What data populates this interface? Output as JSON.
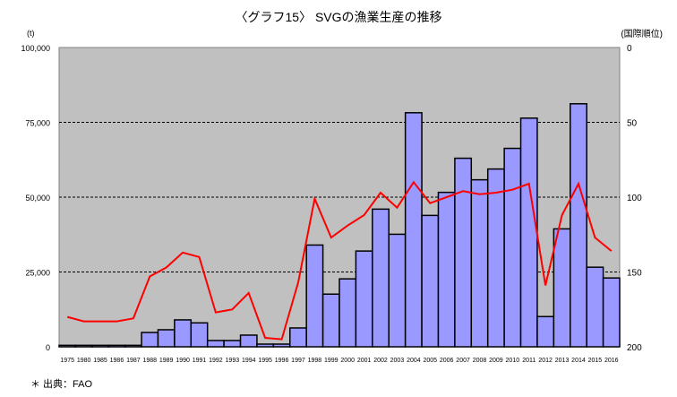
{
  "chart_data": {
    "type": "bar+line",
    "title": "〈グラフ15〉 SVGの漁業生産の推移",
    "ylabel_left": "(t)",
    "ylabel_right": "(国際順位)",
    "source_note": "＊ 出典：FAO",
    "categories": [
      "1975",
      "1980",
      "1985",
      "1986",
      "1987",
      "1988",
      "1989",
      "1990",
      "1991",
      "1992",
      "1993",
      "1994",
      "1995",
      "1996",
      "1997",
      "1998",
      "1999",
      "2000",
      "2001",
      "2002",
      "2003",
      "2004",
      "2005",
      "2006",
      "2007",
      "2008",
      "2009",
      "2010",
      "2011",
      "2012",
      "2013",
      "2014",
      "2015",
      "2016"
    ],
    "left_axis": {
      "range": [
        0,
        100000
      ],
      "ticks": [
        "0",
        "25,000",
        "50,000",
        "75,000",
        "100,000"
      ],
      "tick_values": [
        0,
        25000,
        50000,
        75000,
        100000
      ]
    },
    "right_axis": {
      "range": [
        0,
        200
      ],
      "reversed": true,
      "ticks": [
        "0",
        "50",
        "100",
        "150",
        "200"
      ],
      "tick_values": [
        0,
        50,
        100,
        150,
        200
      ]
    },
    "grid": "horizontal dashed",
    "series": [
      {
        "type": "bar",
        "axis": "left",
        "color": "#9999ff",
        "values": [
          500,
          500,
          500,
          500,
          500,
          4800,
          5700,
          9000,
          8000,
          2100,
          2100,
          3900,
          900,
          900,
          6300,
          34000,
          17600,
          22700,
          32000,
          46000,
          37600,
          78200,
          43900,
          51600,
          63000,
          55800,
          59400,
          66300,
          76400,
          10100,
          39400,
          81200,
          26600,
          23000
        ]
      },
      {
        "type": "line",
        "axis": "right",
        "color": "#ff0000",
        "values": [
          180,
          183,
          183,
          183,
          181,
          153,
          147,
          137,
          140,
          177,
          175,
          164,
          194,
          195,
          157,
          101,
          127,
          119,
          112,
          97,
          107,
          90,
          104,
          100,
          96,
          98,
          97,
          95,
          91,
          159,
          112,
          91,
          127,
          136
        ]
      }
    ],
    "colors": {
      "plot_bg": "#c0c0c0",
      "bar": "#9999ff",
      "line": "#ff0000"
    }
  }
}
